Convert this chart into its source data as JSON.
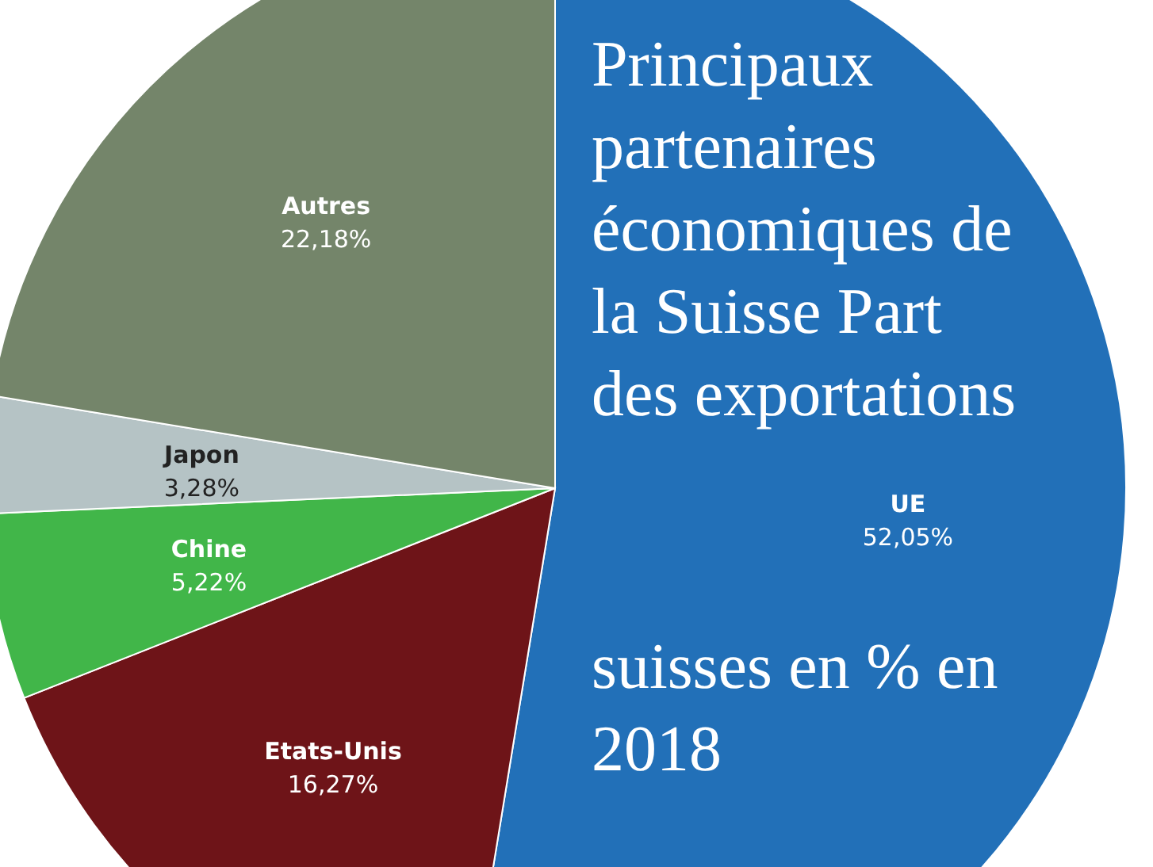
{
  "chart_data": {
    "type": "pie",
    "title": "Principaux partenaires économiques de la Suisse Part des exportations suisses en % en 2018",
    "categories": [
      "UE",
      "Etats-Unis",
      "Chine",
      "Japon",
      "Autres"
    ],
    "values": [
      52.05,
      16.27,
      5.22,
      3.28,
      22.18
    ],
    "value_labels": [
      "52,05%",
      "16,27%",
      "5,22%",
      "3,28%",
      "22,18%"
    ],
    "colors": [
      "#2270b8",
      "#6e1418",
      "#41b649",
      "#b5c3c5",
      "#74856a"
    ],
    "legend": false
  }
}
